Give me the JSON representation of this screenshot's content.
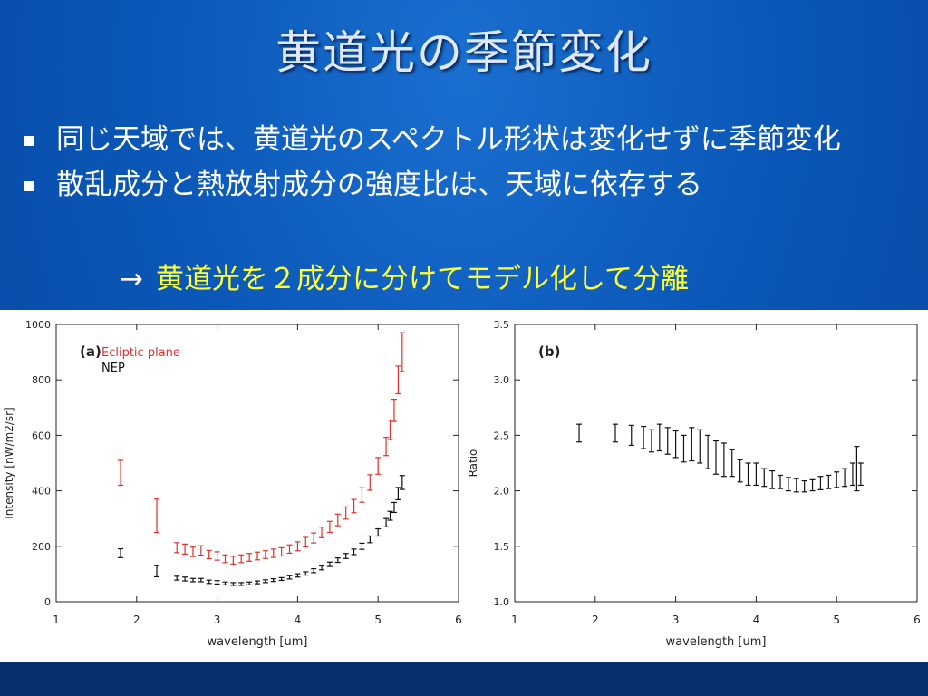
{
  "slide": {
    "title": "黄道光の季節変化",
    "bullets": [
      "同じ天域では、黄道光のスペクトル形状は変化せずに季節変化",
      "散乱成分と熱放射成分の強度比は、天域に依存する"
    ],
    "arrow_text": "黄道光を２成分に分けてモデル化して分離"
  },
  "colors": {
    "red_series": "#e0302a",
    "black_series": "#111111",
    "highlight": "#ffff33"
  },
  "chart_data": [
    {
      "type": "scatter",
      "panel_label": "(a)",
      "xlabel": "wavelength [um]",
      "ylabel": "Intensity [nW/m2/sr]",
      "xlim": [
        1,
        6
      ],
      "ylim": [
        0,
        1000
      ],
      "x_ticks": [
        1,
        2,
        3,
        4,
        5,
        6
      ],
      "y_ticks": [
        0,
        200,
        400,
        600,
        800,
        1000
      ],
      "series": [
        {
          "name": "Ecliptic plane",
          "color": "#e0302a",
          "points": [
            [
              1.8,
              465,
              45
            ],
            [
              2.25,
              310,
              60
            ],
            [
              2.5,
              195,
              18
            ],
            [
              2.6,
              190,
              18
            ],
            [
              2.7,
              180,
              17
            ],
            [
              2.8,
              185,
              17
            ],
            [
              2.9,
              170,
              15
            ],
            [
              3.0,
              165,
              15
            ],
            [
              3.1,
              155,
              14
            ],
            [
              3.2,
              150,
              14
            ],
            [
              3.3,
              155,
              14
            ],
            [
              3.4,
              160,
              14
            ],
            [
              3.5,
              165,
              14
            ],
            [
              3.6,
              170,
              14
            ],
            [
              3.7,
              175,
              15
            ],
            [
              3.8,
              180,
              15
            ],
            [
              3.9,
              190,
              15
            ],
            [
              4.0,
              200,
              16
            ],
            [
              4.1,
              215,
              17
            ],
            [
              4.2,
              230,
              18
            ],
            [
              4.3,
              250,
              19
            ],
            [
              4.4,
              270,
              20
            ],
            [
              4.5,
              295,
              21
            ],
            [
              4.6,
              320,
              22
            ],
            [
              4.7,
              345,
              24
            ],
            [
              4.8,
              385,
              26
            ],
            [
              4.9,
              430,
              28
            ],
            [
              5.0,
              490,
              30
            ],
            [
              5.1,
              560,
              33
            ],
            [
              5.15,
              620,
              35
            ],
            [
              5.2,
              690,
              40
            ],
            [
              5.25,
              800,
              50
            ],
            [
              5.3,
              900,
              70
            ]
          ]
        },
        {
          "name": "NEP",
          "color": "#111111",
          "points": [
            [
              1.8,
              175,
              16
            ],
            [
              2.25,
              110,
              20
            ],
            [
              2.5,
              85,
              7
            ],
            [
              2.6,
              82,
              7
            ],
            [
              2.7,
              78,
              6
            ],
            [
              2.8,
              78,
              6
            ],
            [
              2.9,
              72,
              6
            ],
            [
              3.0,
              70,
              6
            ],
            [
              3.1,
              66,
              5
            ],
            [
              3.2,
              64,
              5
            ],
            [
              3.3,
              64,
              5
            ],
            [
              3.4,
              66,
              5
            ],
            [
              3.5,
              70,
              5
            ],
            [
              3.6,
              74,
              5
            ],
            [
              3.7,
              78,
              5
            ],
            [
              3.8,
              82,
              5
            ],
            [
              3.9,
              88,
              6
            ],
            [
              4.0,
              95,
              6
            ],
            [
              4.1,
              102,
              6
            ],
            [
              4.2,
              112,
              7
            ],
            [
              4.3,
              122,
              7
            ],
            [
              4.4,
              135,
              8
            ],
            [
              4.5,
              150,
              8
            ],
            [
              4.6,
              165,
              9
            ],
            [
              4.7,
              180,
              10
            ],
            [
              4.8,
              200,
              11
            ],
            [
              4.9,
              225,
              12
            ],
            [
              5.0,
              250,
              13
            ],
            [
              5.1,
              285,
              15
            ],
            [
              5.15,
              310,
              16
            ],
            [
              5.2,
              340,
              18
            ],
            [
              5.25,
              390,
              22
            ],
            [
              5.3,
              430,
              25
            ]
          ]
        }
      ]
    },
    {
      "type": "scatter",
      "panel_label": "(b)",
      "xlabel": "wavelength [um]",
      "ylabel": "Ratio",
      "xlim": [
        1,
        6
      ],
      "ylim": [
        1.0,
        3.5
      ],
      "x_ticks": [
        1,
        2,
        3,
        4,
        5,
        6
      ],
      "y_ticks": [
        1.0,
        1.5,
        2.0,
        2.5,
        3.0,
        3.5
      ],
      "series": [
        {
          "color": "#111111",
          "points": [
            [
              1.8,
              2.52,
              0.08
            ],
            [
              2.25,
              2.52,
              0.08
            ],
            [
              2.45,
              2.5,
              0.09
            ],
            [
              2.6,
              2.48,
              0.1
            ],
            [
              2.7,
              2.45,
              0.1
            ],
            [
              2.8,
              2.48,
              0.12
            ],
            [
              2.9,
              2.45,
              0.12
            ],
            [
              3.0,
              2.42,
              0.12
            ],
            [
              3.1,
              2.38,
              0.12
            ],
            [
              3.2,
              2.42,
              0.15
            ],
            [
              3.3,
              2.4,
              0.15
            ],
            [
              3.4,
              2.35,
              0.15
            ],
            [
              3.5,
              2.3,
              0.15
            ],
            [
              3.6,
              2.28,
              0.15
            ],
            [
              3.7,
              2.25,
              0.12
            ],
            [
              3.8,
              2.18,
              0.1
            ],
            [
              3.9,
              2.15,
              0.1
            ],
            [
              4.0,
              2.15,
              0.1
            ],
            [
              4.1,
              2.12,
              0.08
            ],
            [
              4.2,
              2.1,
              0.08
            ],
            [
              4.3,
              2.08,
              0.06
            ],
            [
              4.4,
              2.06,
              0.06
            ],
            [
              4.5,
              2.05,
              0.06
            ],
            [
              4.6,
              2.04,
              0.05
            ],
            [
              4.7,
              2.05,
              0.05
            ],
            [
              4.8,
              2.07,
              0.06
            ],
            [
              4.9,
              2.08,
              0.06
            ],
            [
              5.0,
              2.1,
              0.07
            ],
            [
              5.1,
              2.12,
              0.08
            ],
            [
              5.2,
              2.15,
              0.1
            ],
            [
              5.25,
              2.2,
              0.2
            ],
            [
              5.3,
              2.15,
              0.1
            ]
          ]
        }
      ]
    }
  ]
}
